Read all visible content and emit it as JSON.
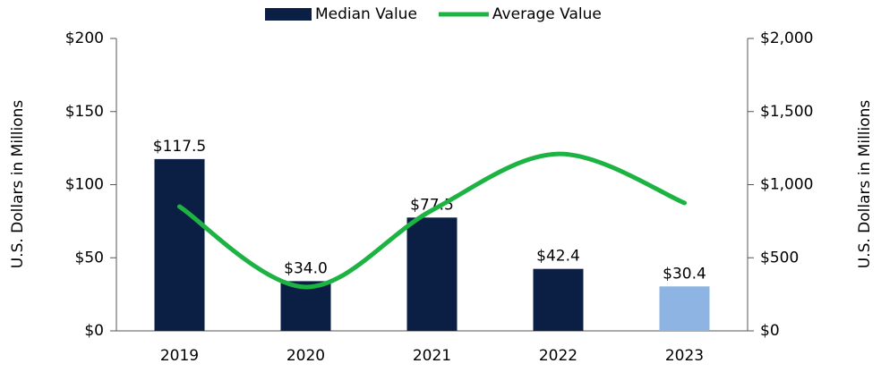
{
  "chart_data": {
    "type": "bar_line",
    "categories": [
      "2019",
      "2020",
      "2021",
      "2022",
      "2023"
    ],
    "series": [
      {
        "name": "Median Value",
        "type": "bar",
        "color": "#0b1f44",
        "point_colors": [
          "#0b1f44",
          "#0b1f44",
          "#0b1f44",
          "#0b1f44",
          "#8db4e2"
        ],
        "values": [
          117.5,
          34.0,
          77.5,
          42.4,
          30.4
        ],
        "value_labels": [
          "$117.5",
          "$34.0",
          "$77.5",
          "$42.4",
          "$30.4"
        ]
      },
      {
        "name": "Average Value",
        "type": "line",
        "axis": "y2",
        "color": "#1db343",
        "smooth": true,
        "values": [
          850,
          300,
          825,
          1210,
          875
        ]
      }
    ],
    "ylabel": "U.S. Dollars in Millions",
    "y2label": "U.S. Dollars in Millions",
    "ylim": [
      0,
      200
    ],
    "yticks": [
      {
        "value": 0,
        "label": "$0"
      },
      {
        "value": 50,
        "label": "$50"
      },
      {
        "value": 100,
        "label": "$100"
      },
      {
        "value": 150,
        "label": "$150"
      },
      {
        "value": 200,
        "label": "$200"
      }
    ],
    "y2lim": [
      0,
      2000
    ],
    "y2ticks": [
      {
        "value": 0,
        "label": "$0"
      },
      {
        "value": 500,
        "label": "$500"
      },
      {
        "value": 1000,
        "label": "$1,000"
      },
      {
        "value": 1500,
        "label": "$1,500"
      },
      {
        "value": 2000,
        "label": "$2,000"
      }
    ],
    "legend": "top"
  }
}
